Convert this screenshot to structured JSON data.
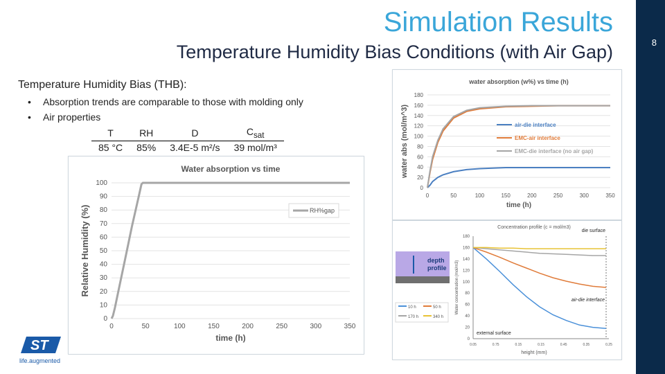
{
  "header": {
    "title": "Simulation Results",
    "subtitle": "Temperature Humidity Bias Conditions (with Air Gap)",
    "page_number": "8"
  },
  "section": {
    "heading": "Temperature Humidity Bias (THB):",
    "bullets": [
      "Absorption trends are comparable to those with molding only",
      "Air properties"
    ]
  },
  "params_table": {
    "headers": [
      "T",
      "RH",
      "D",
      "C"
    ],
    "csat_subscript": "sat",
    "values": [
      "85 °C",
      "85%",
      "3.4E-5 m²/s",
      "39 mol/m³"
    ]
  },
  "logo": {
    "tagline": "life.augmented",
    "mark_color": "#1a5aa8"
  },
  "chart_data": [
    {
      "type": "line",
      "title": "Water absorption vs time",
      "xlabel": "time (h)",
      "ylabel": "Relative Humidity (%)",
      "xlim": [
        0,
        350
      ],
      "ylim": [
        0,
        100
      ],
      "xticks": [
        0,
        50,
        100,
        150,
        200,
        250,
        300,
        350
      ],
      "yticks": [
        0,
        10,
        20,
        30,
        40,
        50,
        60,
        70,
        80,
        90,
        100
      ],
      "legend_position": "top-right",
      "series": [
        {
          "name": "RH%gap",
          "color": "#a6a6a6",
          "x": [
            0,
            2,
            5,
            10,
            20,
            30,
            40,
            44,
            46,
            50,
            100,
            150,
            200,
            250,
            300,
            350
          ],
          "y": [
            0,
            2,
            8,
            20,
            44,
            68,
            90,
            99,
            100,
            100,
            100,
            100,
            100,
            100,
            100,
            100
          ]
        }
      ]
    },
    {
      "type": "line",
      "title": "water absorption (w%) vs time (h)",
      "xlabel": "time (h)",
      "ylabel": "water abs (mol/m^3)",
      "xlim": [
        0,
        350
      ],
      "ylim": [
        0,
        180
      ],
      "xticks": [
        0,
        50,
        100,
        150,
        200,
        250,
        300,
        350
      ],
      "yticks": [
        0,
        20,
        40,
        60,
        80,
        100,
        120,
        140,
        160,
        180
      ],
      "legend_position": "right",
      "series": [
        {
          "name": "air-die interface",
          "color": "#4a7fc1",
          "x": [
            0,
            5,
            10,
            20,
            30,
            50,
            75,
            100,
            150,
            200,
            250,
            300,
            350
          ],
          "y": [
            0,
            5,
            12,
            20,
            25,
            31,
            35,
            37,
            39,
            39,
            39,
            39,
            39
          ]
        },
        {
          "name": "EMC-air interface",
          "color": "#e07b39",
          "x": [
            0,
            5,
            10,
            20,
            30,
            50,
            75,
            100,
            150,
            200,
            250,
            300,
            350
          ],
          "y": [
            0,
            30,
            55,
            88,
            110,
            135,
            148,
            153,
            157,
            158,
            159,
            159,
            159
          ]
        },
        {
          "name": "EMC-die interface (no air gap)",
          "color": "#a5a5a5",
          "x": [
            0,
            5,
            10,
            20,
            30,
            50,
            75,
            100,
            150,
            200,
            250,
            300,
            350
          ],
          "y": [
            0,
            33,
            60,
            92,
            114,
            138,
            150,
            155,
            158,
            159,
            159,
            159,
            159
          ]
        }
      ]
    },
    {
      "type": "line",
      "title": "Concentration profile (c = mol/m3)",
      "xlabel": "height (mm)",
      "ylabel": "Water concentration (mol/m3)",
      "ylim": [
        0,
        180
      ],
      "xticks": [
        "0.05",
        "0.75",
        "0.15",
        "0.15",
        "0.45",
        "0.35",
        "0.25"
      ],
      "yticks": [
        0,
        20,
        40,
        60,
        80,
        100,
        120,
        140,
        160,
        180
      ],
      "annotations": [
        "die surface",
        "air-die interface",
        "external surface"
      ],
      "legend_position": "bottom-left",
      "series": [
        {
          "name": "10 h",
          "color": "#4a90d9",
          "y": [
            160,
            140,
            118,
            95,
            74,
            56,
            42,
            32,
            24,
            20,
            18
          ]
        },
        {
          "name": "50 h",
          "color": "#e07b39",
          "y": [
            160,
            152,
            143,
            133,
            124,
            115,
            107,
            101,
            96,
            92,
            90
          ]
        },
        {
          "name": "170 h",
          "color": "#a5a5a5",
          "y": [
            160,
            158,
            156,
            154,
            152,
            150,
            149,
            148,
            147,
            146,
            146
          ]
        },
        {
          "name": "340 h",
          "color": "#e8c234",
          "y": [
            160,
            160,
            159,
            159,
            158,
            158,
            158,
            158,
            158,
            158,
            158
          ]
        }
      ]
    }
  ],
  "inset": {
    "label_line1": "depth",
    "label_line2": "profile"
  }
}
